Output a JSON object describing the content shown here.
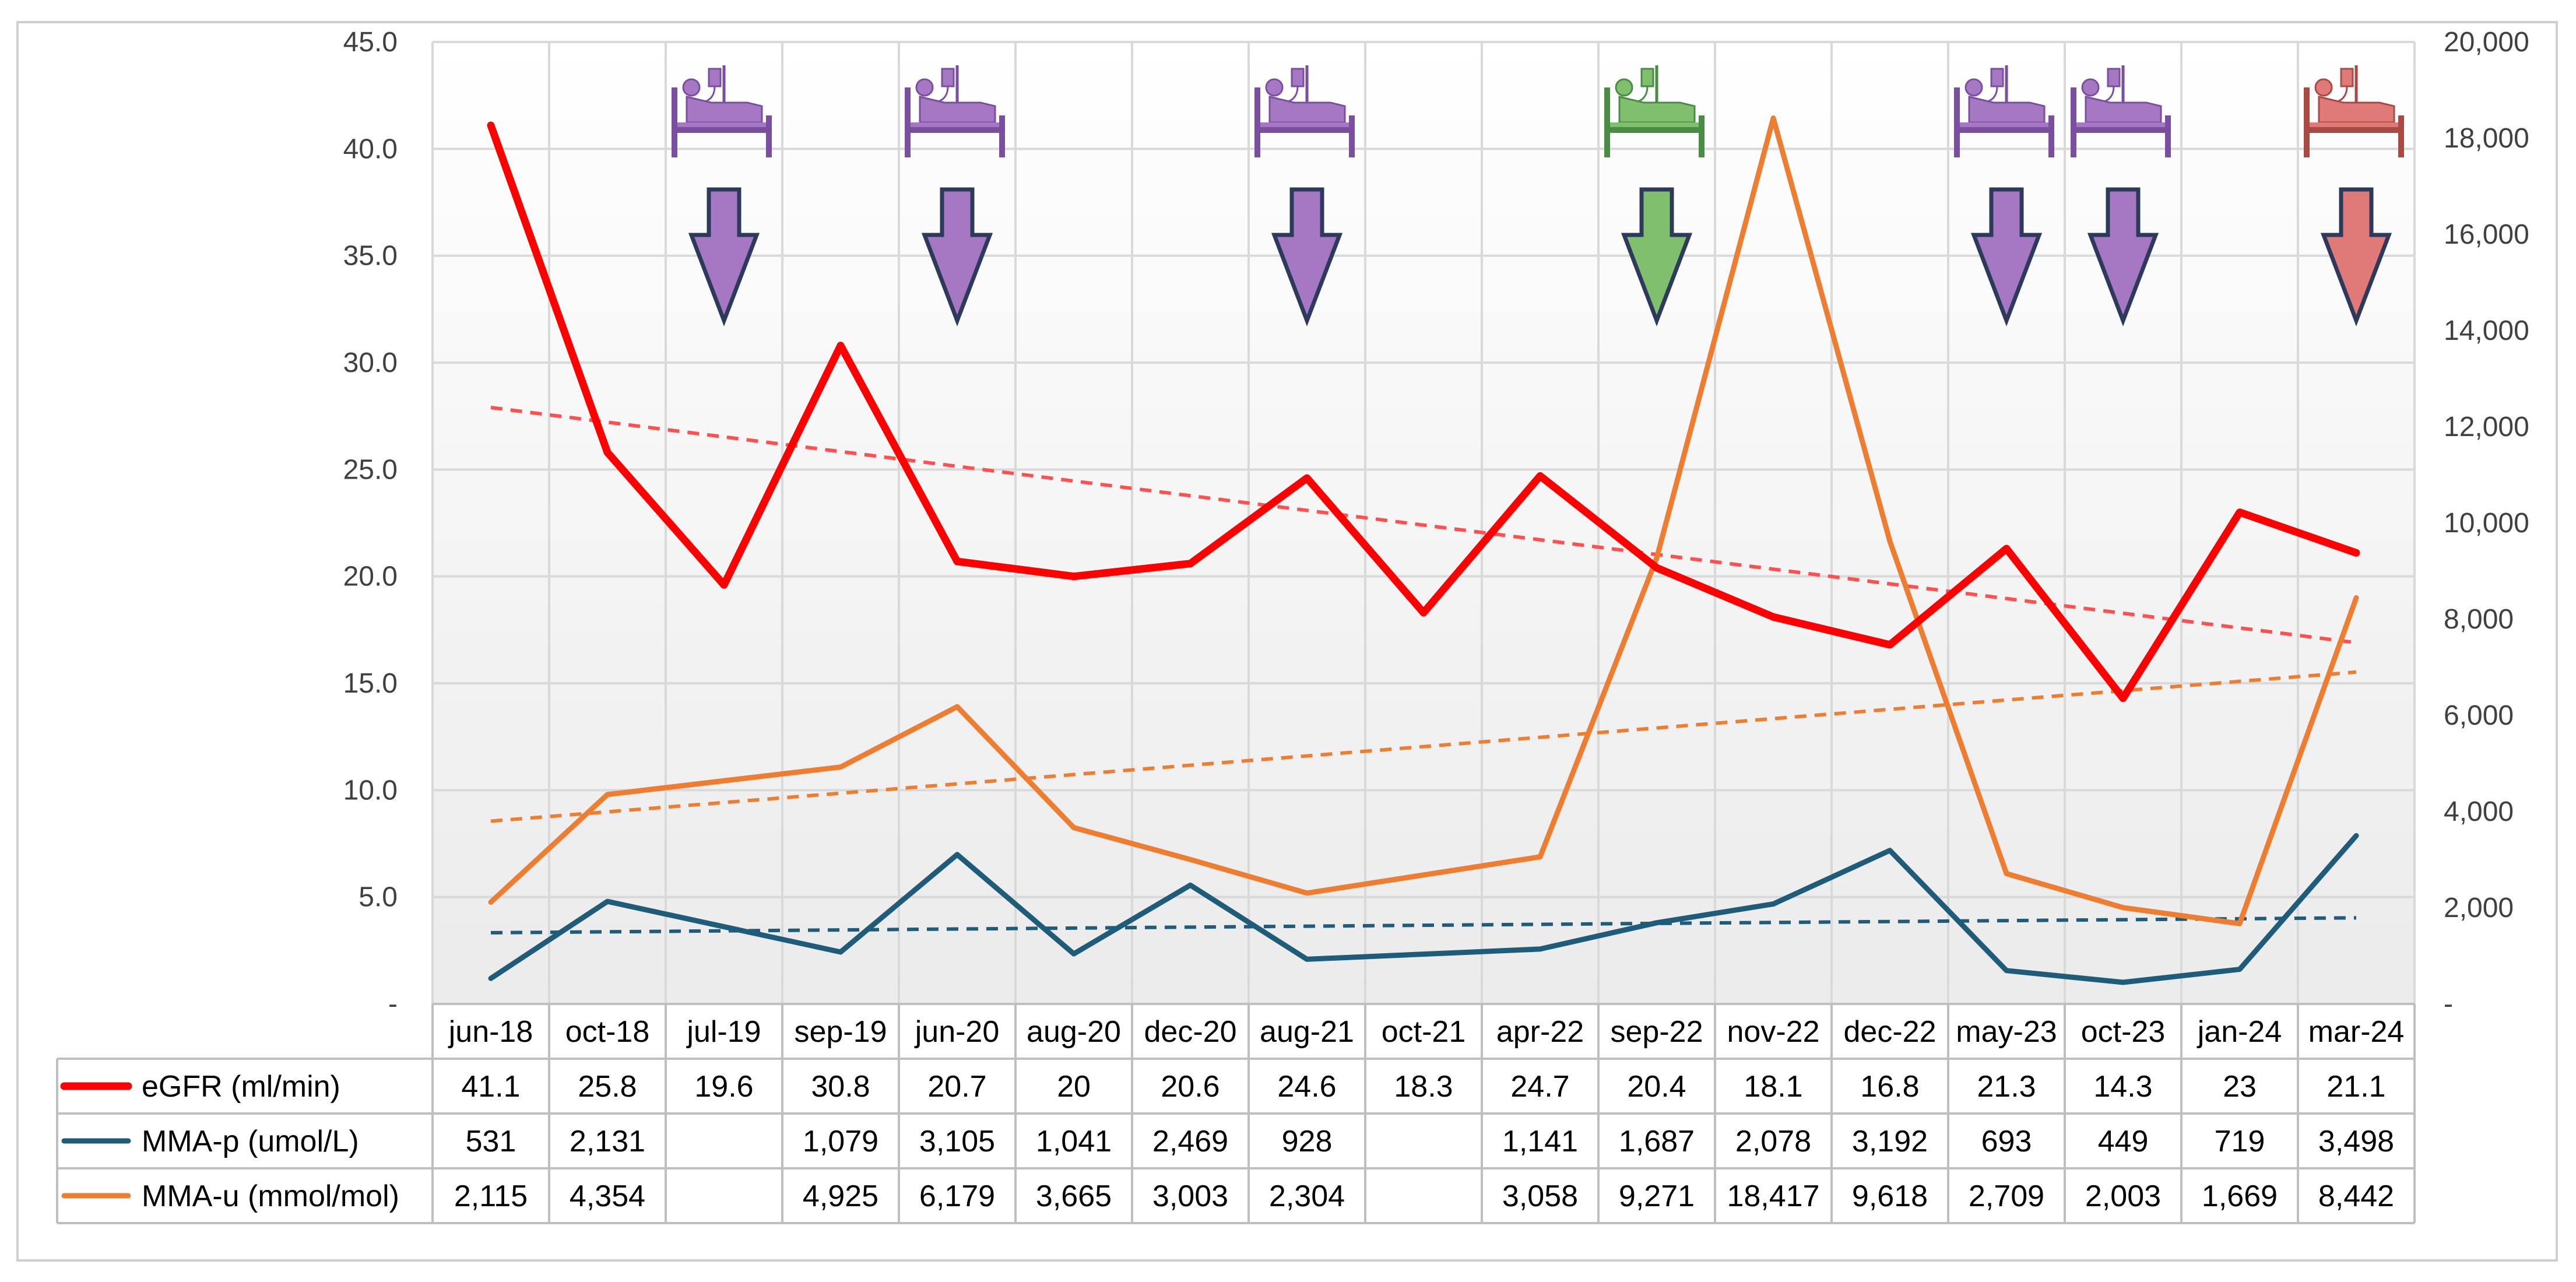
{
  "chart_data": {
    "type": "line",
    "title": "",
    "categories": [
      "jun-18",
      "oct-18",
      "jul-19",
      "sep-19",
      "jun-20",
      "aug-20",
      "dec-20",
      "aug-21",
      "oct-21",
      "apr-22",
      "sep-22",
      "nov-22",
      "dec-22",
      "may-23",
      "oct-23",
      "jan-24",
      "mar-24"
    ],
    "y_left": {
      "ylim": [
        0,
        45
      ],
      "ticks": [
        "-",
        "5.0",
        "10.0",
        "15.0",
        "20.0",
        "25.0",
        "30.0",
        "35.0",
        "40.0",
        "45.0"
      ]
    },
    "y_right": {
      "ylim": [
        0,
        20000
      ],
      "ticks": [
        "-",
        "2,000",
        "4,000",
        "6,000",
        "8,000",
        "10,000",
        "12,000",
        "14,000",
        "16,000",
        "18,000",
        "20,000"
      ]
    },
    "grid": true,
    "legend": "data table below chart",
    "series": [
      {
        "name": "eGFR (ml/min)",
        "axis": "left",
        "color": "#ff0000",
        "values": [
          41.1,
          25.8,
          19.6,
          30.8,
          20.7,
          20,
          20.6,
          24.6,
          18.3,
          24.7,
          20.4,
          18.1,
          16.8,
          21.3,
          14.3,
          23,
          21.1
        ],
        "labels": [
          "41.1",
          "25.8",
          "19.6",
          "30.8",
          "20.7",
          "20",
          "20.6",
          "24.6",
          "18.3",
          "24.7",
          "20.4",
          "18.1",
          "16.8",
          "21.3",
          "14.3",
          "23",
          "21.1"
        ]
      },
      {
        "name": "MMA-p (umol/L)",
        "axis": "right",
        "color": "#1f5c7a",
        "values": [
          531,
          2131,
          null,
          1079,
          3105,
          1041,
          2469,
          928,
          null,
          1141,
          1687,
          2078,
          3192,
          693,
          449,
          719,
          3498
        ],
        "labels": [
          "531",
          "2,131",
          "",
          "1,079",
          "3,105",
          "1,041",
          "2,469",
          "928",
          "",
          "1,141",
          "1,687",
          "2,078",
          "3,192",
          "693",
          "449",
          "719",
          "3,498"
        ]
      },
      {
        "name": "MMA-u (mmol/mol)",
        "axis": "right",
        "color": "#ed7d31",
        "values": [
          2115,
          4354,
          null,
          4925,
          6179,
          3665,
          3003,
          2304,
          null,
          3058,
          9271,
          18417,
          9618,
          2709,
          2003,
          1669,
          8442
        ],
        "labels": [
          "2,115",
          "4,354",
          "",
          "4,925",
          "6,179",
          "3,665",
          "3,003",
          "2,304",
          "",
          "3,058",
          "9,271",
          "18,417",
          "9,618",
          "2,709",
          "2,003",
          "1,669",
          "8,442"
        ]
      }
    ],
    "trendlines": [
      {
        "series": "eGFR (ml/min)",
        "axis": "left",
        "color": "#ff5050",
        "start": 27.9,
        "end": 16.9
      },
      {
        "series": "MMA-u (mmol/mol)",
        "axis": "right",
        "color": "#ed7d31",
        "start": 3800,
        "end": 6900
      },
      {
        "series": "MMA-p (umol/L)",
        "axis": "right",
        "color": "#1f5c7a",
        "start": 1480,
        "end": 1790
      }
    ],
    "annotations": [
      {
        "category": "jul-19",
        "icon": "hospital-bed-icon",
        "arrow": "down-arrow-icon",
        "color": "#a678c4",
        "edge": "#7b4fa0"
      },
      {
        "category": "jun-20",
        "icon": "hospital-bed-icon",
        "arrow": "down-arrow-icon",
        "color": "#a678c4",
        "edge": "#7b4fa0"
      },
      {
        "category": "aug-21",
        "icon": "hospital-bed-icon",
        "arrow": "down-arrow-icon",
        "color": "#a678c4",
        "edge": "#7b4fa0"
      },
      {
        "category": "sep-22",
        "icon": "hospital-bed-icon",
        "arrow": "down-arrow-icon",
        "color": "#7fbf6e",
        "edge": "#4a8c44"
      },
      {
        "category": "may-23",
        "icon": "hospital-bed-icon",
        "arrow": "down-arrow-icon",
        "color": "#a678c4",
        "edge": "#7b4fa0"
      },
      {
        "category": "oct-23",
        "icon": "hospital-bed-icon",
        "arrow": "down-arrow-icon",
        "color": "#a678c4",
        "edge": "#7b4fa0"
      },
      {
        "category": "mar-24",
        "icon": "hospital-bed-icon",
        "arrow": "down-arrow-icon",
        "color": "#e07a78",
        "edge": "#a94a45"
      }
    ]
  }
}
